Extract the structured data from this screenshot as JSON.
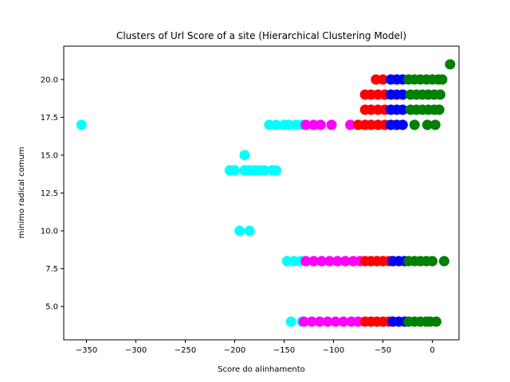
{
  "chart_data": {
    "type": "scatter",
    "title": "Clusters of Url Score of a site (Hierarchical Clustering Model)",
    "xlabel": "Score do alinhamento",
    "ylabel": "minimo radical comum",
    "xlim": [
      -373,
      27
    ],
    "ylim": [
      2.8,
      22.2
    ],
    "xticks": [
      -350,
      -300,
      -250,
      -200,
      -150,
      -100,
      -50,
      0
    ],
    "xtick_labels": [
      "−350",
      "−300",
      "−250",
      "−200",
      "−150",
      "−100",
      "−50",
      "0"
    ],
    "yticks": [
      5.0,
      7.5,
      10.0,
      12.5,
      15.0,
      17.5,
      20.0
    ],
    "ytick_labels": [
      "5.0",
      "7.5",
      "10.0",
      "12.5",
      "15.0",
      "17.5",
      "20.0"
    ],
    "grid": false,
    "series": [
      {
        "color": "#00ffff",
        "points": [
          [
            -355,
            17
          ],
          [
            -165,
            17
          ],
          [
            -158,
            17
          ],
          [
            -150,
            17
          ],
          [
            -145,
            17
          ],
          [
            -138,
            17
          ],
          [
            -132,
            17
          ],
          [
            -190,
            15
          ],
          [
            -205,
            14
          ],
          [
            -200,
            14
          ],
          [
            -190,
            14
          ],
          [
            -185,
            14
          ],
          [
            -180,
            14
          ],
          [
            -175,
            14
          ],
          [
            -170,
            14
          ],
          [
            -162,
            14
          ],
          [
            -158,
            14
          ],
          [
            -195,
            10
          ],
          [
            -185,
            10
          ],
          [
            -147,
            8
          ],
          [
            -140,
            8
          ],
          [
            -133,
            8
          ],
          [
            -143,
            4
          ],
          [
            -132,
            4
          ]
        ]
      },
      {
        "color": "#ff00ff",
        "points": [
          [
            -128,
            17
          ],
          [
            -120,
            17
          ],
          [
            -113,
            17
          ],
          [
            -102,
            17
          ],
          [
            -83,
            17
          ],
          [
            -128,
            8
          ],
          [
            -120,
            8
          ],
          [
            -112,
            8
          ],
          [
            -104,
            8
          ],
          [
            -96,
            8
          ],
          [
            -88,
            8
          ],
          [
            -80,
            8
          ],
          [
            -73,
            8
          ],
          [
            -130,
            4
          ],
          [
            -122,
            4
          ],
          [
            -114,
            4
          ],
          [
            -106,
            4
          ],
          [
            -98,
            4
          ],
          [
            -90,
            4
          ],
          [
            -82,
            4
          ],
          [
            -75,
            4
          ]
        ]
      },
      {
        "color": "#ff0000",
        "points": [
          [
            -57,
            20
          ],
          [
            -50,
            20
          ],
          [
            -68,
            19
          ],
          [
            -62,
            19
          ],
          [
            -55,
            19
          ],
          [
            -48,
            19
          ],
          [
            -68,
            18
          ],
          [
            -62,
            18
          ],
          [
            -55,
            18
          ],
          [
            -48,
            18
          ],
          [
            -75,
            17
          ],
          [
            -68,
            17
          ],
          [
            -62,
            17
          ],
          [
            -55,
            17
          ],
          [
            -48,
            17
          ],
          [
            -68,
            8
          ],
          [
            -62,
            8
          ],
          [
            -56,
            8
          ],
          [
            -50,
            8
          ],
          [
            -44,
            8
          ],
          [
            -68,
            4
          ],
          [
            -62,
            4
          ],
          [
            -56,
            4
          ],
          [
            -50,
            4
          ],
          [
            -44,
            4
          ]
        ]
      },
      {
        "color": "#0000ff",
        "points": [
          [
            -42,
            20
          ],
          [
            -36,
            20
          ],
          [
            -30,
            20
          ],
          [
            -42,
            19
          ],
          [
            -36,
            19
          ],
          [
            -30,
            19
          ],
          [
            -42,
            18
          ],
          [
            -36,
            18
          ],
          [
            -30,
            18
          ],
          [
            -42,
            17
          ],
          [
            -36,
            17
          ],
          [
            -30,
            17
          ],
          [
            -40,
            8
          ],
          [
            -34,
            8
          ],
          [
            -28,
            8
          ],
          [
            -40,
            4
          ],
          [
            -34,
            4
          ],
          [
            -28,
            4
          ]
        ]
      },
      {
        "color": "#008000",
        "points": [
          [
            18,
            21
          ],
          [
            -24,
            20
          ],
          [
            -18,
            20
          ],
          [
            -12,
            20
          ],
          [
            -6,
            20
          ],
          [
            0,
            20
          ],
          [
            6,
            20
          ],
          [
            10,
            20
          ],
          [
            -22,
            19
          ],
          [
            -16,
            19
          ],
          [
            -10,
            19
          ],
          [
            -4,
            19
          ],
          [
            2,
            19
          ],
          [
            8,
            19
          ],
          [
            -22,
            18
          ],
          [
            -16,
            18
          ],
          [
            -10,
            18
          ],
          [
            -4,
            18
          ],
          [
            2,
            18
          ],
          [
            7,
            18
          ],
          [
            -18,
            17
          ],
          [
            -5,
            17
          ],
          [
            3,
            17
          ],
          [
            -24,
            8
          ],
          [
            -18,
            8
          ],
          [
            -12,
            8
          ],
          [
            -6,
            8
          ],
          [
            0,
            8
          ],
          [
            12,
            8
          ],
          [
            -24,
            4
          ],
          [
            -18,
            4
          ],
          [
            -12,
            4
          ],
          [
            -6,
            4
          ],
          [
            -2,
            4
          ],
          [
            4,
            4
          ]
        ]
      }
    ]
  }
}
